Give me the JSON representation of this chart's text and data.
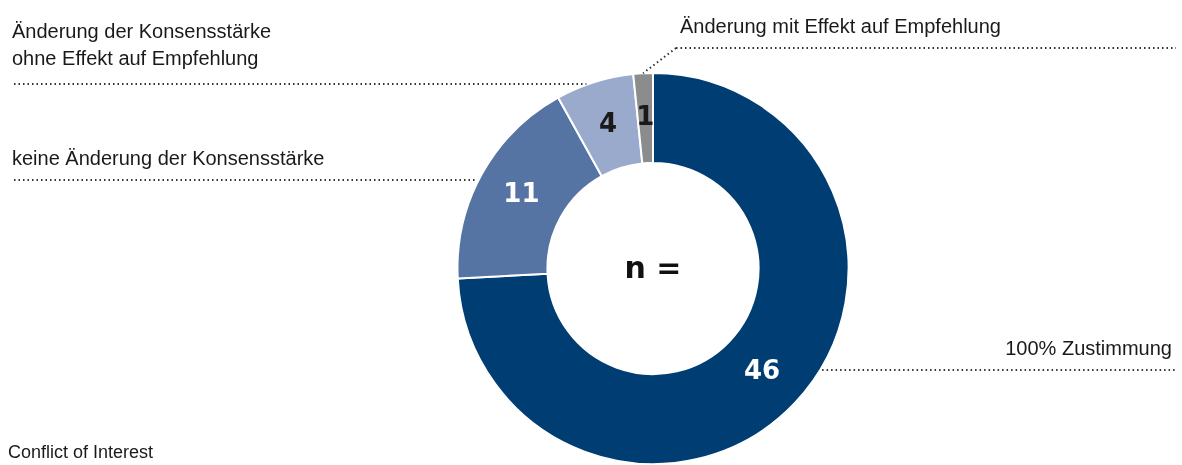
{
  "chart_data": {
    "type": "donut",
    "categories": [
      "100% Zustimmung",
      "keine Änderung der Konsensstärke",
      "Änderung der Konsensstärke ohne Effekt auf Empfehlung",
      "Änderung mit Effekt auf Empfehlung"
    ],
    "values": [
      46,
      11,
      4,
      1
    ],
    "colors": [
      "#003d73",
      "#5573a3",
      "#9aaacd",
      "#8c8c8c"
    ],
    "data_labels": true,
    "legend": false,
    "annotations": [
      "n =",
      "Conflict of Interest"
    ]
  }
}
